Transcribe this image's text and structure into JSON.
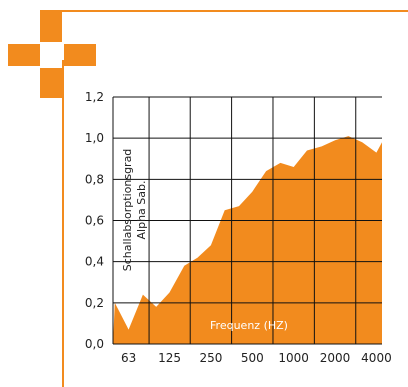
{
  "colors": {
    "accent": "#f28b1e",
    "fill": "#f28b1e",
    "grid": "#111111"
  },
  "chart_data": {
    "type": "area",
    "ylabel": "Schallabsorptionsgrad",
    "ylabel2": "Alpha Sab.",
    "xlabel": "Frequenz (HZ)",
    "ylim": [
      0.0,
      1.2
    ],
    "y_ticks": [
      "0,0",
      "0,2",
      "0,4",
      "0,6",
      "0,8",
      "1,0",
      "1,2"
    ],
    "x_ticks": [
      "63",
      "125",
      "250",
      "500",
      "1000",
      "2000",
      "4000"
    ],
    "x_range_log2": [
      5.6,
      12.1
    ],
    "grid": true,
    "series": [
      {
        "x": [
          50,
          63,
          80,
          100,
          125,
          160,
          200,
          250,
          315,
          400,
          500,
          630,
          800,
          1000,
          1250,
          1600,
          2000,
          2500,
          3150,
          4000,
          5000
        ],
        "values": [
          0.2,
          0.07,
          0.24,
          0.18,
          0.25,
          0.38,
          0.42,
          0.48,
          0.65,
          0.67,
          0.74,
          0.84,
          0.88,
          0.86,
          0.94,
          0.96,
          0.99,
          1.01,
          0.98,
          0.93,
          0.98
        ]
      }
    ]
  }
}
